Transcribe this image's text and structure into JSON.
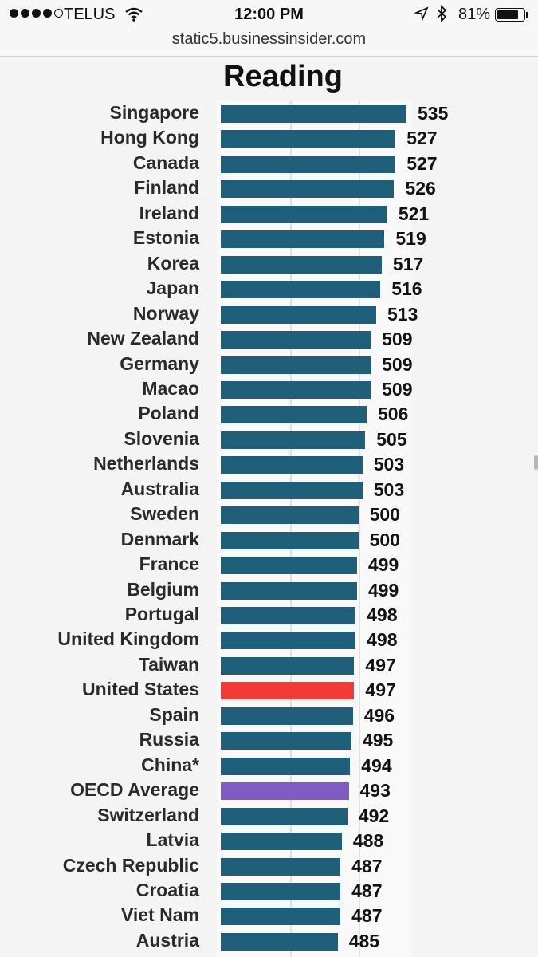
{
  "status_bar": {
    "carrier": "TELUS",
    "time": "12:00 PM",
    "battery_percent": "81%",
    "battery_level": 0.81,
    "signal_bars": 4,
    "signal_total": 5
  },
  "url": "static5.businessinsider.com",
  "colors": {
    "default_bar": "#1f5f7a",
    "highlight_bar": "#f23b35",
    "average_bar": "#7f5bc4"
  },
  "chart_data": {
    "type": "bar",
    "orientation": "horizontal",
    "title": "Reading",
    "xlim": [
      400,
      540
    ],
    "grid": true,
    "categories": [
      "Singapore",
      "Hong Kong",
      "Canada",
      "Finland",
      "Ireland",
      "Estonia",
      "Korea",
      "Japan",
      "Norway",
      "New Zealand",
      "Germany",
      "Macao",
      "Poland",
      "Slovenia",
      "Netherlands",
      "Australia",
      "Sweden",
      "Denmark",
      "France",
      "Belgium",
      "Portugal",
      "United Kingdom",
      "Taiwan",
      "United States",
      "Spain",
      "Russia",
      "China*",
      "OECD Average",
      "Switzerland",
      "Latvia",
      "Czech Republic",
      "Croatia",
      "Viet Nam",
      "Austria"
    ],
    "values": [
      535,
      527,
      527,
      526,
      521,
      519,
      517,
      516,
      513,
      509,
      509,
      509,
      506,
      505,
      503,
      503,
      500,
      500,
      499,
      499,
      498,
      498,
      497,
      497,
      496,
      495,
      494,
      493,
      492,
      488,
      487,
      487,
      487,
      485
    ],
    "highlight": {
      "United States": "highlight_bar",
      "OECD Average": "average_bar"
    }
  }
}
